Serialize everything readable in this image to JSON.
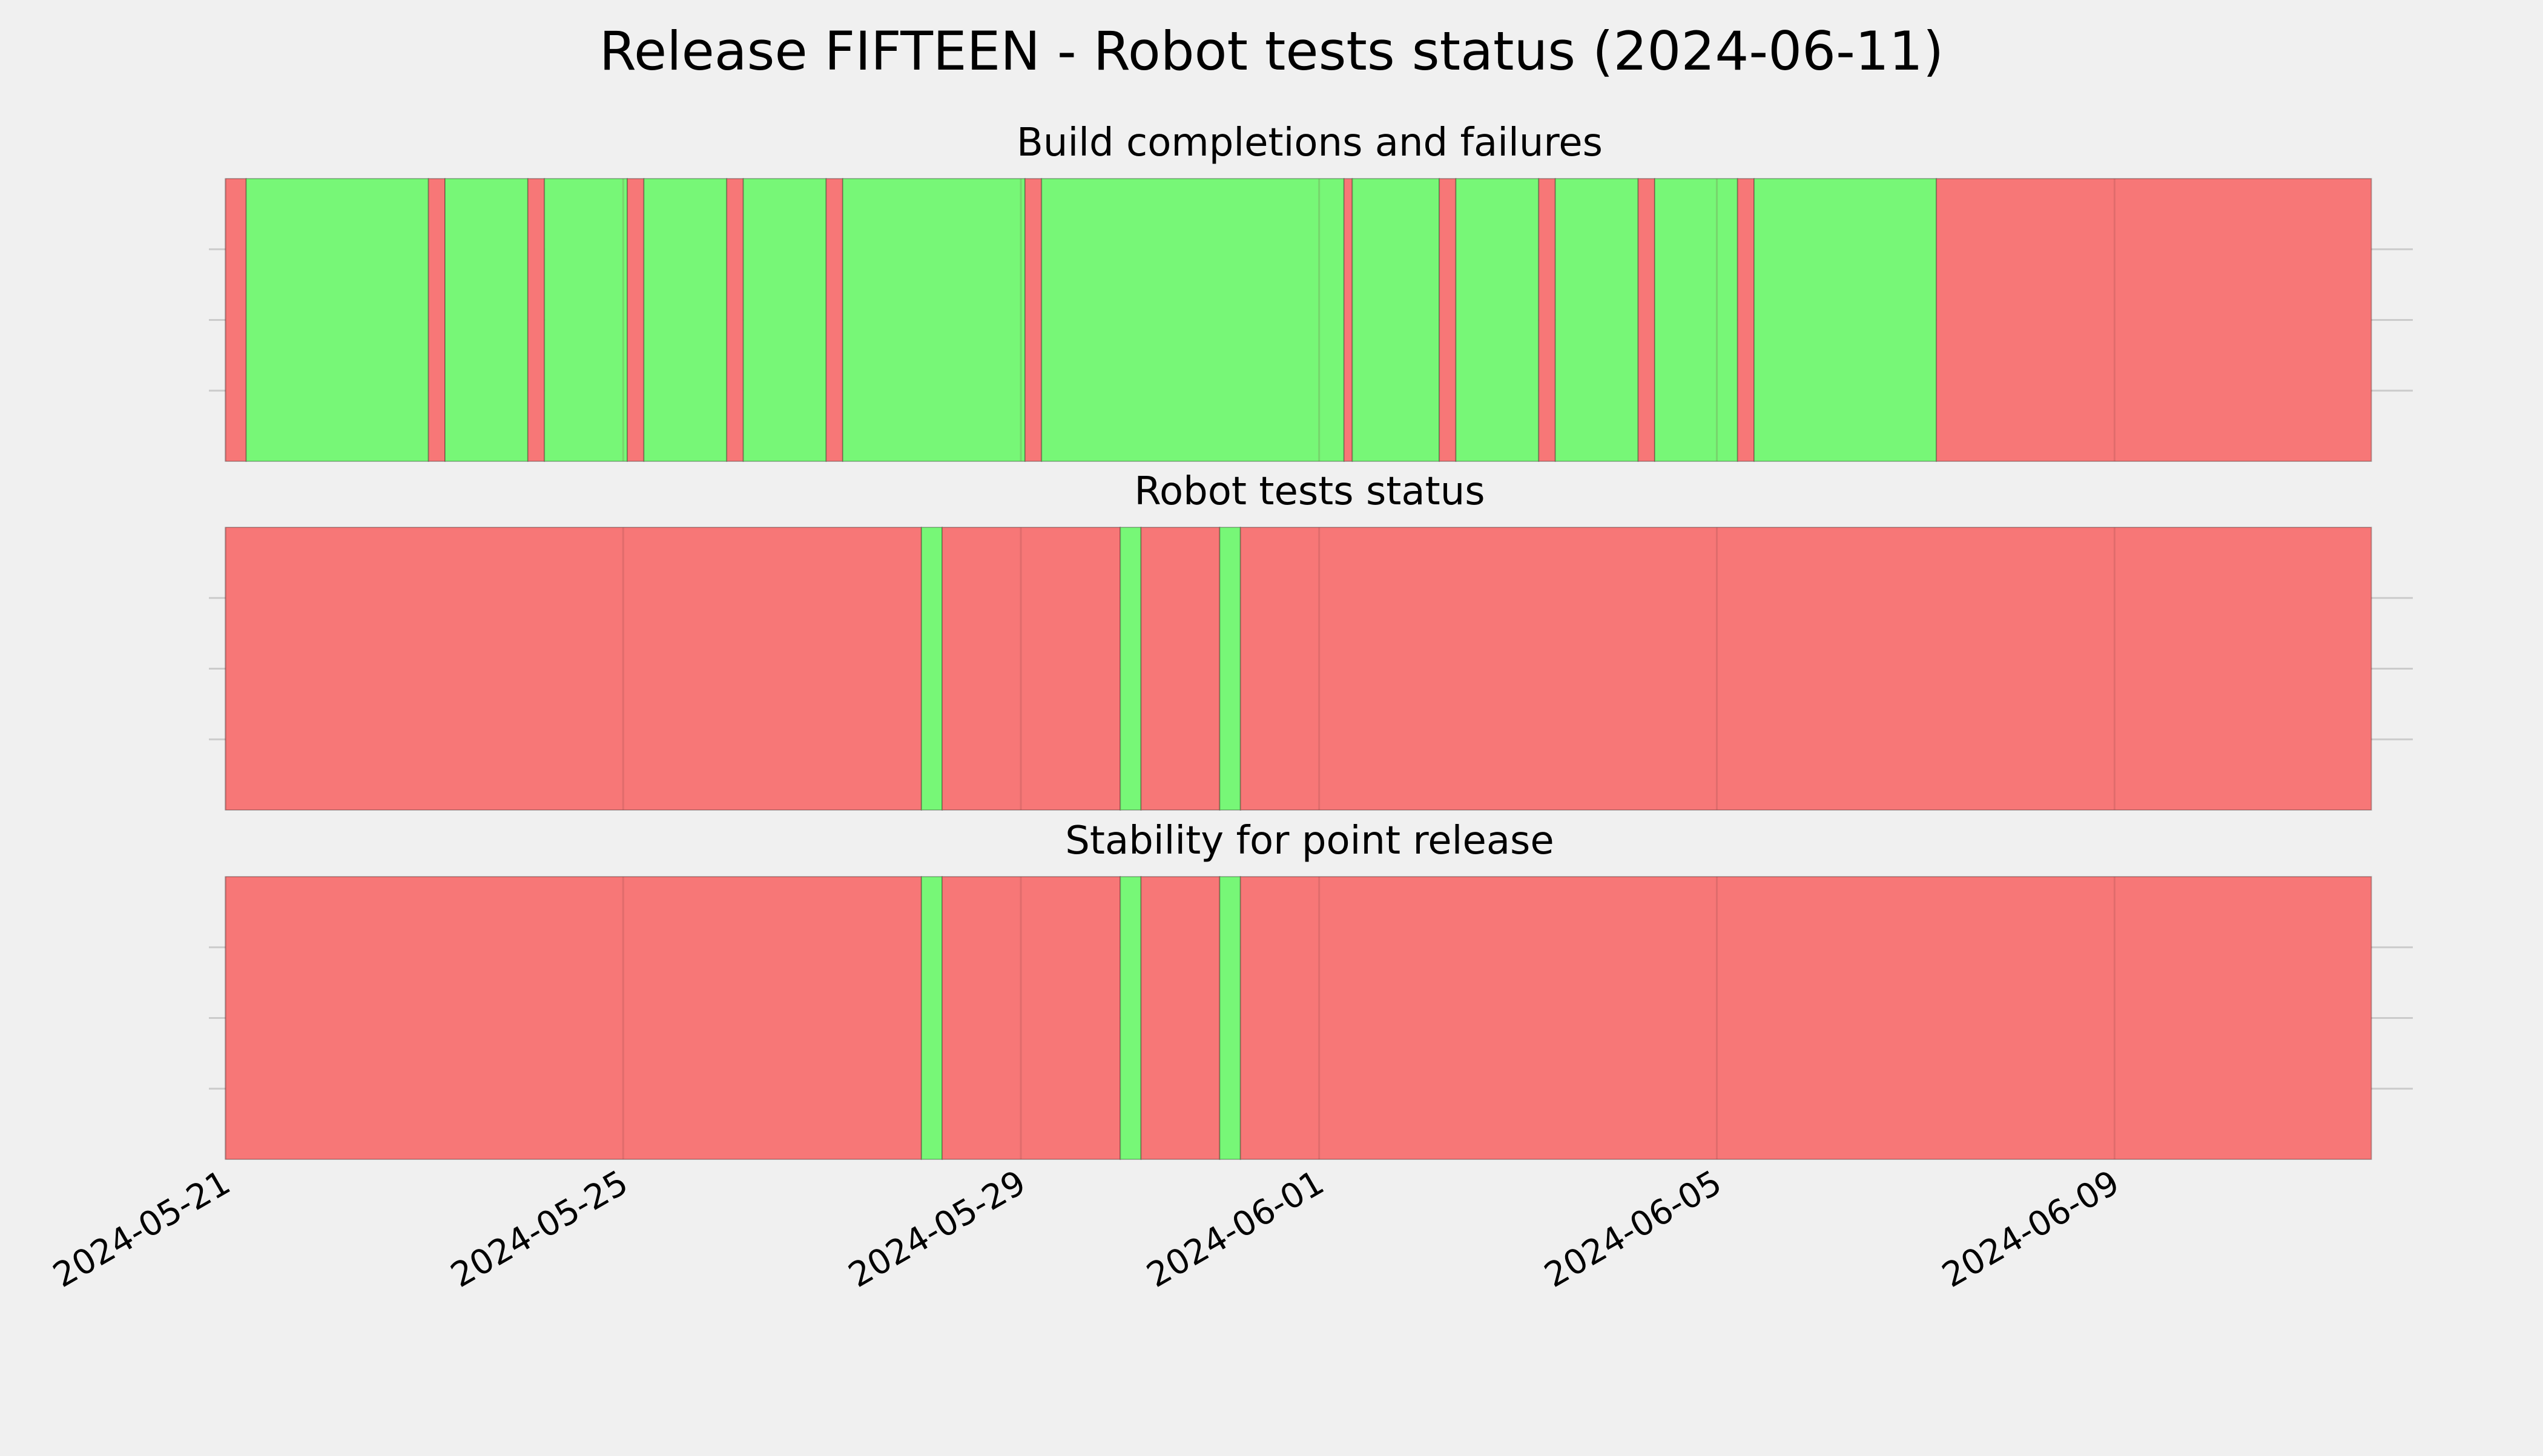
{
  "page": {
    "background": "#f0f0f0"
  },
  "chart_data": {
    "type": "timeline",
    "title": "Release FIFTEEN - Robot tests status (2024-06-11)",
    "colors": {
      "pass": "#77f777",
      "fail": "#f77777",
      "grid": "#cbcbcb"
    },
    "x_range": [
      "2024-05-20T20:00",
      "2024-06-12T00:00"
    ],
    "x_ticks": [
      "2024-05-21",
      "2024-05-25",
      "2024-05-29",
      "2024-06-01",
      "2024-06-05",
      "2024-06-09"
    ],
    "panels": [
      {
        "title": "Build completions and failures",
        "segments": [
          {
            "start": "2024-05-21T00:00",
            "end": "2024-05-21T05:00",
            "status": "fail"
          },
          {
            "start": "2024-05-21T05:00",
            "end": "2024-05-23T01:00",
            "status": "pass"
          },
          {
            "start": "2024-05-23T01:00",
            "end": "2024-05-23T05:00",
            "status": "fail"
          },
          {
            "start": "2024-05-23T05:00",
            "end": "2024-05-24T01:00",
            "status": "pass"
          },
          {
            "start": "2024-05-24T01:00",
            "end": "2024-05-24T05:00",
            "status": "fail"
          },
          {
            "start": "2024-05-24T05:00",
            "end": "2024-05-25T01:00",
            "status": "pass"
          },
          {
            "start": "2024-05-25T01:00",
            "end": "2024-05-25T05:00",
            "status": "fail"
          },
          {
            "start": "2024-05-25T05:00",
            "end": "2024-05-26T01:00",
            "status": "pass"
          },
          {
            "start": "2024-05-26T01:00",
            "end": "2024-05-26T05:00",
            "status": "fail"
          },
          {
            "start": "2024-05-26T05:00",
            "end": "2024-05-27T01:00",
            "status": "pass"
          },
          {
            "start": "2024-05-27T01:00",
            "end": "2024-05-27T05:00",
            "status": "fail"
          },
          {
            "start": "2024-05-27T05:00",
            "end": "2024-05-29T01:00",
            "status": "pass"
          },
          {
            "start": "2024-05-29T01:00",
            "end": "2024-05-29T05:00",
            "status": "fail"
          },
          {
            "start": "2024-05-29T05:00",
            "end": "2024-06-01T06:00",
            "status": "pass"
          },
          {
            "start": "2024-06-01T06:00",
            "end": "2024-06-01T08:00",
            "status": "fail"
          },
          {
            "start": "2024-06-01T08:00",
            "end": "2024-06-02T05:00",
            "status": "pass"
          },
          {
            "start": "2024-06-02T05:00",
            "end": "2024-06-02T09:00",
            "status": "fail"
          },
          {
            "start": "2024-06-02T09:00",
            "end": "2024-06-03T05:00",
            "status": "pass"
          },
          {
            "start": "2024-06-03T05:00",
            "end": "2024-06-03T09:00",
            "status": "fail"
          },
          {
            "start": "2024-06-03T09:00",
            "end": "2024-06-04T05:00",
            "status": "pass"
          },
          {
            "start": "2024-06-04T05:00",
            "end": "2024-06-04T09:00",
            "status": "fail"
          },
          {
            "start": "2024-06-04T09:00",
            "end": "2024-06-05T05:00",
            "status": "pass"
          },
          {
            "start": "2024-06-05T05:00",
            "end": "2024-06-05T09:00",
            "status": "fail"
          },
          {
            "start": "2024-06-05T09:00",
            "end": "2024-06-07T05:00",
            "status": "pass"
          },
          {
            "start": "2024-06-07T05:00",
            "end": "2024-06-11T14:00",
            "status": "fail"
          }
        ]
      },
      {
        "title": "Robot tests status",
        "segments": [
          {
            "start": "2024-05-21T00:00",
            "end": "2024-05-28T00:00",
            "status": "fail"
          },
          {
            "start": "2024-05-28T00:00",
            "end": "2024-05-28T05:00",
            "status": "pass"
          },
          {
            "start": "2024-05-28T05:00",
            "end": "2024-05-30T00:00",
            "status": "fail"
          },
          {
            "start": "2024-05-30T00:00",
            "end": "2024-05-30T05:00",
            "status": "pass"
          },
          {
            "start": "2024-05-30T05:00",
            "end": "2024-05-31T00:00",
            "status": "fail"
          },
          {
            "start": "2024-05-31T00:00",
            "end": "2024-05-31T05:00",
            "status": "pass"
          },
          {
            "start": "2024-05-31T05:00",
            "end": "2024-06-11T14:00",
            "status": "fail"
          }
        ]
      },
      {
        "title": "Stability for point release",
        "segments": [
          {
            "start": "2024-05-21T00:00",
            "end": "2024-05-28T00:00",
            "status": "fail"
          },
          {
            "start": "2024-05-28T00:00",
            "end": "2024-05-28T05:00",
            "status": "pass"
          },
          {
            "start": "2024-05-28T05:00",
            "end": "2024-05-30T00:00",
            "status": "fail"
          },
          {
            "start": "2024-05-30T00:00",
            "end": "2024-05-30T05:00",
            "status": "pass"
          },
          {
            "start": "2024-05-30T05:00",
            "end": "2024-05-31T00:00",
            "status": "fail"
          },
          {
            "start": "2024-05-31T00:00",
            "end": "2024-05-31T05:00",
            "status": "pass"
          },
          {
            "start": "2024-05-31T05:00",
            "end": "2024-06-11T14:00",
            "status": "fail"
          }
        ]
      }
    ]
  }
}
